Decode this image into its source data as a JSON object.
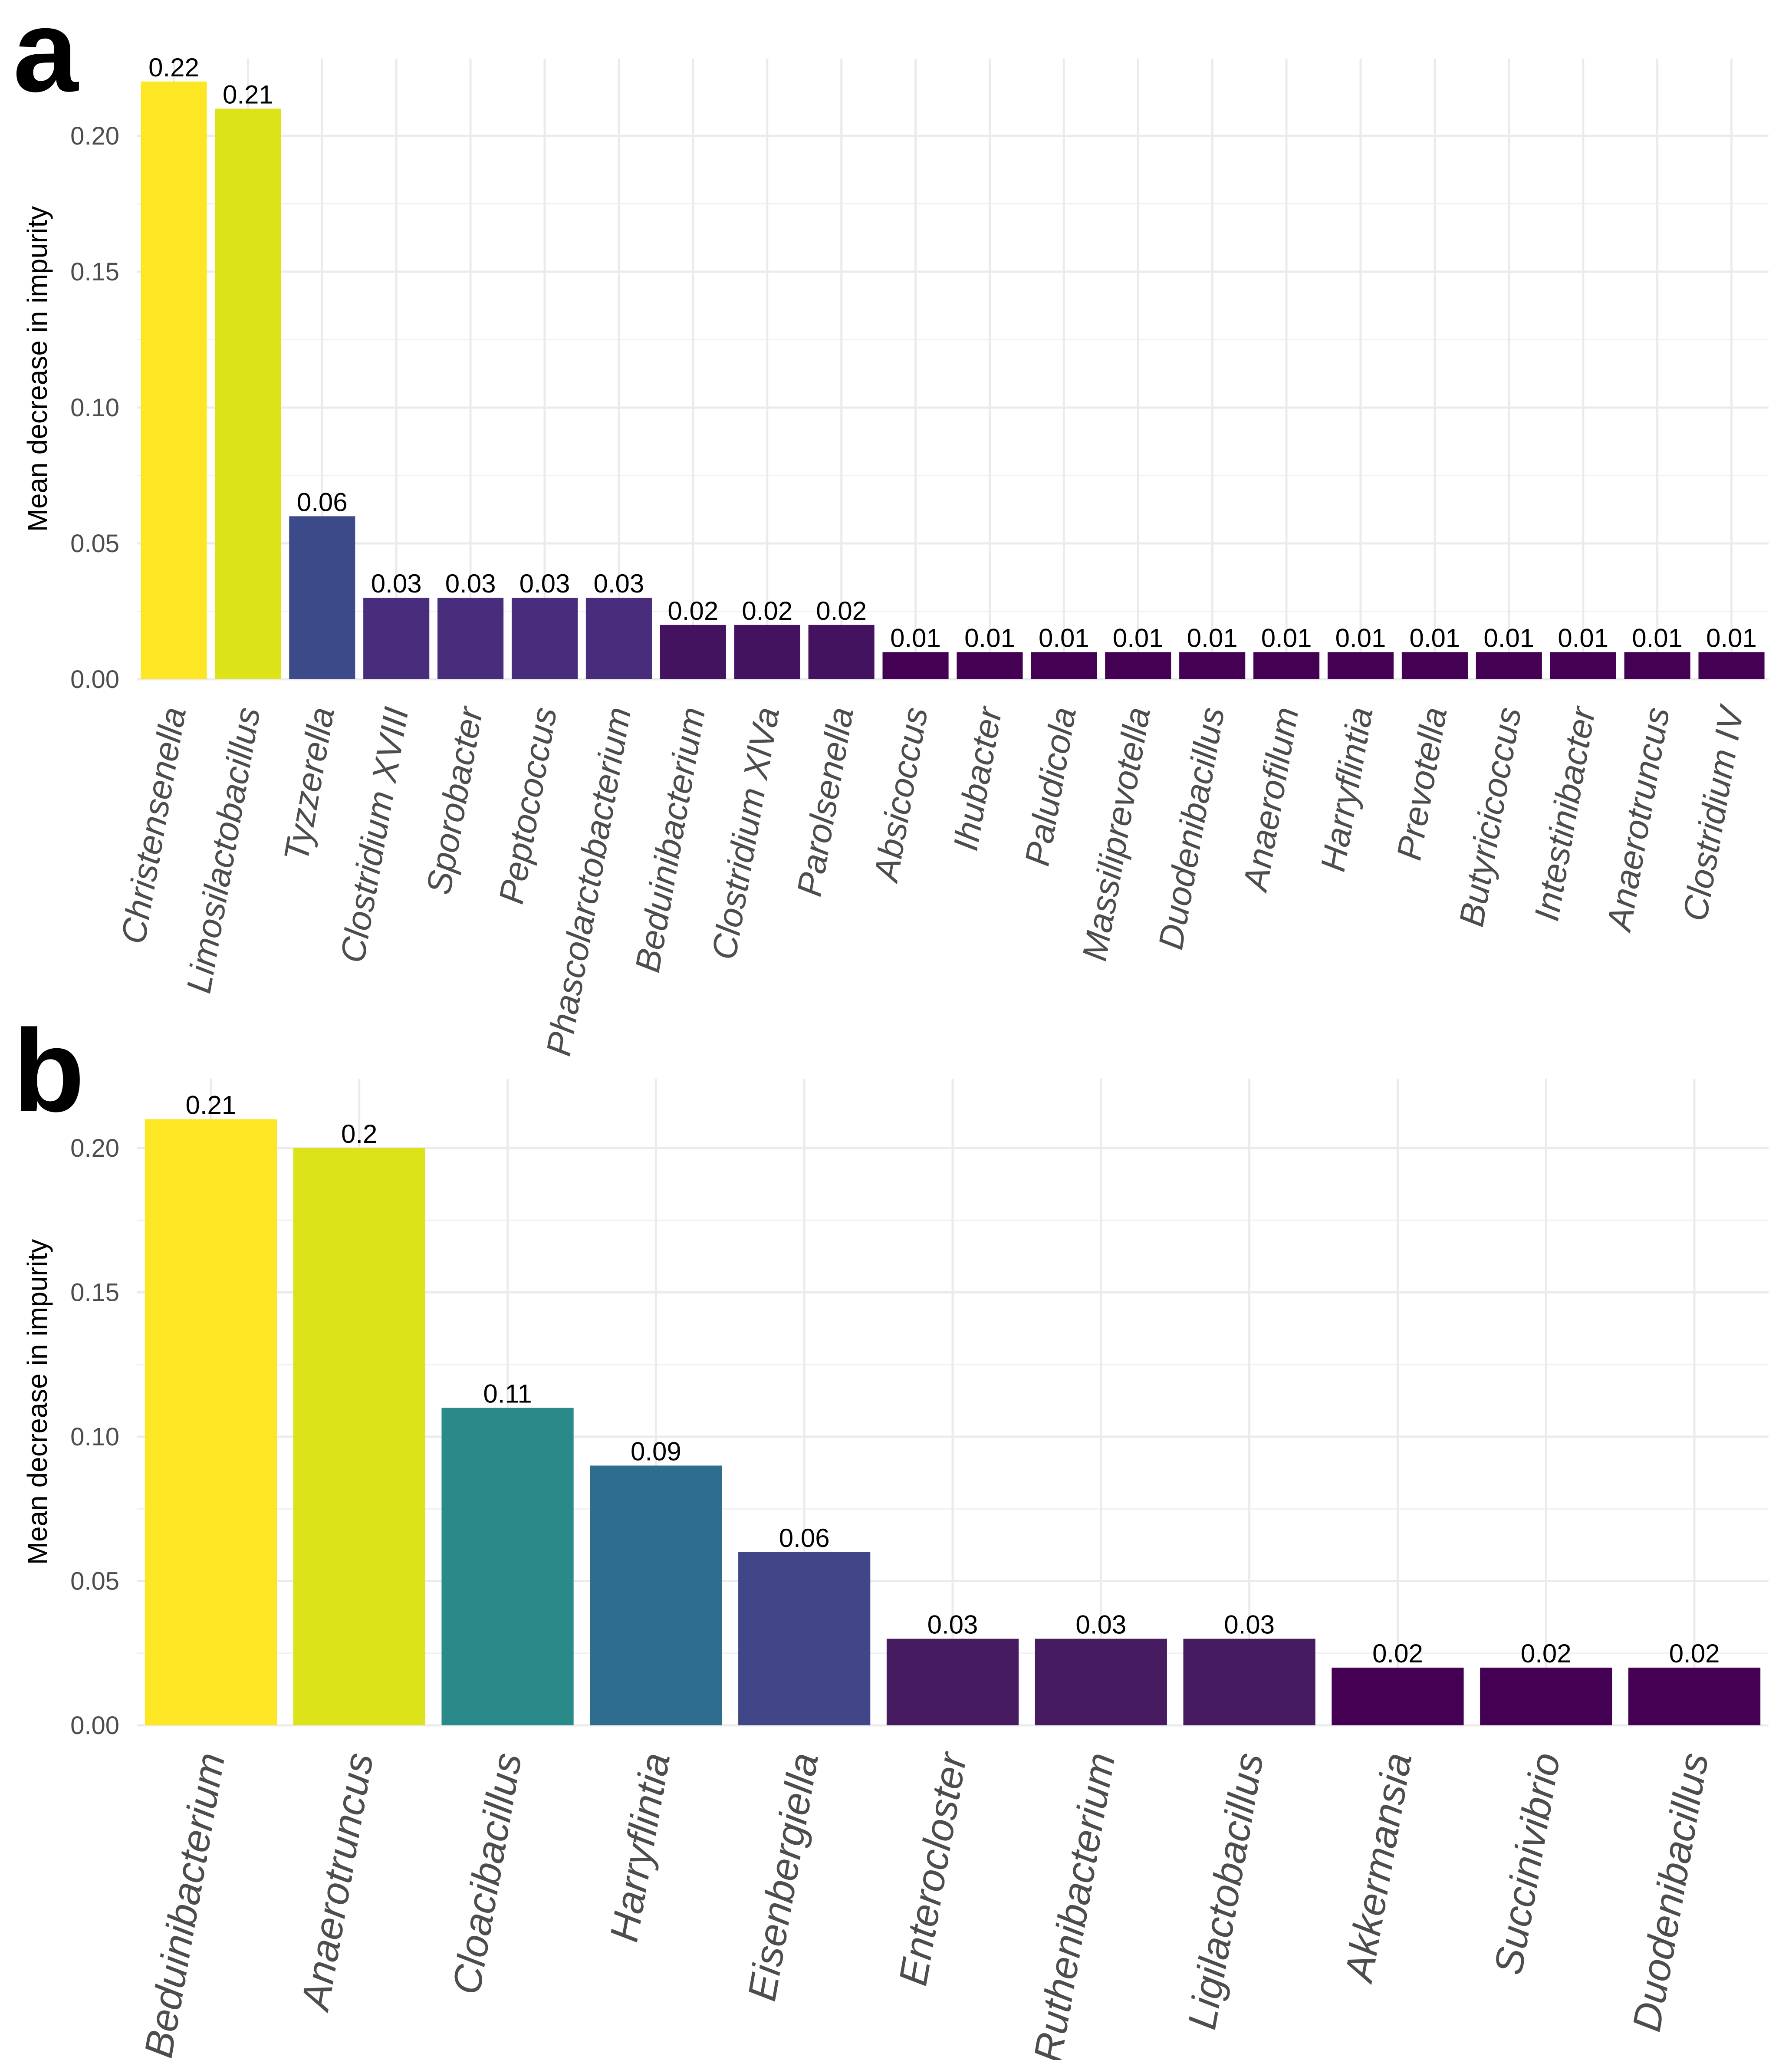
{
  "chart_data": [
    {
      "type": "bar",
      "panel": "a",
      "ylabel": "Mean decrease in impurity",
      "ylim": [
        0,
        0.22
      ],
      "yticks": [
        "0.00",
        "0.05",
        "0.10",
        "0.15",
        "0.20"
      ],
      "grid": true,
      "categories": [
        "Christensenella",
        "Limosilactobacillus",
        "Tyzzerella",
        "Clostridium XVIII",
        "Sporobacter",
        "Peptococcus",
        "Phascolarctobacterium",
        "Beduinibacterium",
        "Clostridium XlVa",
        "Parolsenella",
        "Absicoccus",
        "Ihubacter",
        "Paludicola",
        "Massiliprevotella",
        "Duodenibacillus",
        "Anaerofilum",
        "Harryflintia",
        "Prevotella",
        "Butyricicoccus",
        "Intestinibacter",
        "Anaerotruncus",
        "Clostridium IV"
      ],
      "values": [
        0.22,
        0.21,
        0.06,
        0.03,
        0.03,
        0.03,
        0.03,
        0.02,
        0.02,
        0.02,
        0.01,
        0.01,
        0.01,
        0.01,
        0.01,
        0.01,
        0.01,
        0.01,
        0.01,
        0.01,
        0.01,
        0.01
      ],
      "value_labels": [
        "0.22",
        "0.21",
        "0.06",
        "0.03",
        "0.03",
        "0.03",
        "0.03",
        "0.02",
        "0.02",
        "0.02",
        "0.01",
        "0.01",
        "0.01",
        "0.01",
        "0.01",
        "0.01",
        "0.01",
        "0.01",
        "0.01",
        "0.01",
        "0.01",
        "0.01"
      ],
      "colors": [
        "#FDE725",
        "#DCE319",
        "#3D4A89",
        "#472D7B",
        "#472D7B",
        "#472D7B",
        "#472D7B",
        "#44135F",
        "#44135F",
        "#44135F",
        "#440154",
        "#440154",
        "#440154",
        "#440154",
        "#440154",
        "#440154",
        "#440154",
        "#440154",
        "#440154",
        "#440154",
        "#440154",
        "#440154"
      ]
    },
    {
      "type": "bar",
      "panel": "b",
      "ylabel": "Mean decrease in impurity",
      "ylim": [
        0,
        0.21
      ],
      "yticks": [
        "0.00",
        "0.05",
        "0.10",
        "0.15",
        "0.20"
      ],
      "grid": true,
      "categories": [
        "Beduinibacterium",
        "Anaerotruncus",
        "Cloacibacillus",
        "Harryflintia",
        "Eisenbergiella",
        "Enterocloster",
        "Ruthenibacterium",
        "Ligilactobacillus",
        "Akkermansia",
        "Succinivibrio",
        "Duodenibacillus"
      ],
      "values": [
        0.21,
        0.2,
        0.11,
        0.09,
        0.06,
        0.03,
        0.03,
        0.03,
        0.02,
        0.02,
        0.02
      ],
      "value_labels": [
        "0.21",
        "0.2",
        "0.11",
        "0.09",
        "0.06",
        "0.03",
        "0.03",
        "0.03",
        "0.02",
        "0.02",
        "0.02"
      ],
      "colors": [
        "#FDE725",
        "#DCE319",
        "#2A8A8A",
        "#2F6D8E",
        "#404688",
        "#461B60",
        "#461B60",
        "#461B60",
        "#440154",
        "#440154",
        "#440154"
      ]
    }
  ]
}
